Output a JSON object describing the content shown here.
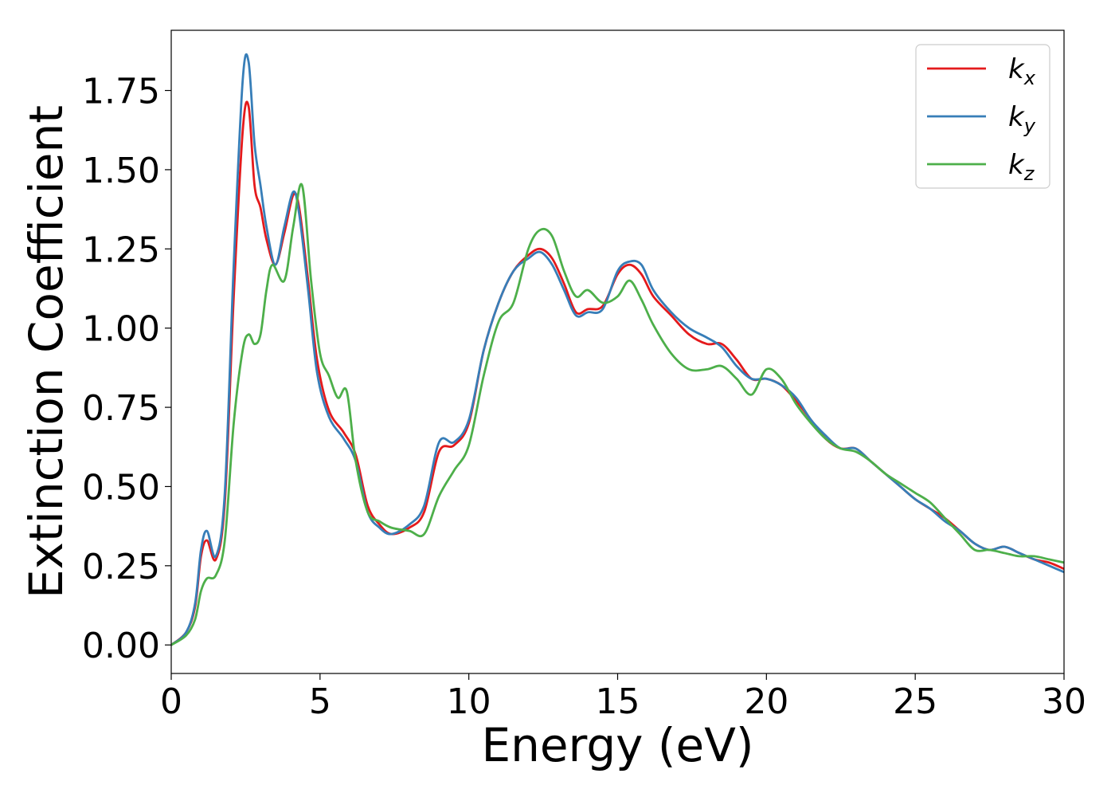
{
  "chart_data": {
    "type": "line",
    "title": "",
    "xlabel": "Energy (eV)",
    "ylabel": "Extinction Coefficient",
    "xlim": [
      0,
      30
    ],
    "ylim": [
      -0.09,
      1.94
    ],
    "xticks": [
      0,
      5,
      10,
      15,
      20,
      25,
      30
    ],
    "xtick_labels": [
      "0",
      "5",
      "10",
      "15",
      "20",
      "25",
      "30"
    ],
    "yticks": [
      0,
      0.25,
      0.5,
      0.75,
      1.0,
      1.25,
      1.5,
      1.75
    ],
    "ytick_labels": [
      "0.00",
      "0.25",
      "0.50",
      "0.75",
      "1.00",
      "1.25",
      "1.50",
      "1.75"
    ],
    "grid": false,
    "legend_position": "top-right",
    "series": [
      {
        "name": "k_x",
        "label_main": "k",
        "label_sub": "x",
        "color": "#e41a1c",
        "x": [
          0,
          0.5,
          0.8,
          1.0,
          1.2,
          1.5,
          1.8,
          2.1,
          2.4,
          2.6,
          2.8,
          3.0,
          3.2,
          3.5,
          3.8,
          4.1,
          4.3,
          4.6,
          4.9,
          5.3,
          5.8,
          6.2,
          6.6,
          7.0,
          7.4,
          8.0,
          8.5,
          9.0,
          9.5,
          10.0,
          10.5,
          11.0,
          11.5,
          12.0,
          12.4,
          12.8,
          13.2,
          13.6,
          14.0,
          14.5,
          15.0,
          15.4,
          15.8,
          16.2,
          16.8,
          17.4,
          18.0,
          18.5,
          19.0,
          19.5,
          20.0,
          20.5,
          21.0,
          21.5,
          22.0,
          22.5,
          23.0,
          23.5,
          24.0,
          24.5,
          25.0,
          25.5,
          26.0,
          26.5,
          27.0,
          27.5,
          28.0,
          28.5,
          29.0,
          29.5,
          30.0
        ],
        "y": [
          0.0,
          0.04,
          0.12,
          0.28,
          0.33,
          0.27,
          0.45,
          1.1,
          1.62,
          1.7,
          1.45,
          1.38,
          1.28,
          1.2,
          1.3,
          1.42,
          1.38,
          1.15,
          0.9,
          0.74,
          0.67,
          0.6,
          0.44,
          0.38,
          0.35,
          0.37,
          0.42,
          0.61,
          0.63,
          0.7,
          0.93,
          1.08,
          1.18,
          1.23,
          1.25,
          1.22,
          1.14,
          1.05,
          1.06,
          1.07,
          1.17,
          1.2,
          1.17,
          1.1,
          1.04,
          0.98,
          0.95,
          0.95,
          0.9,
          0.84,
          0.84,
          0.82,
          0.77,
          0.71,
          0.65,
          0.62,
          0.62,
          0.58,
          0.54,
          0.5,
          0.46,
          0.43,
          0.4,
          0.36,
          0.32,
          0.3,
          0.31,
          0.29,
          0.27,
          0.26,
          0.24
        ]
      },
      {
        "name": "k_y",
        "label_main": "k",
        "label_sub": "y",
        "color": "#377eb8",
        "x": [
          0,
          0.5,
          0.8,
          1.0,
          1.2,
          1.5,
          1.8,
          2.1,
          2.4,
          2.6,
          2.8,
          3.0,
          3.2,
          3.5,
          3.8,
          4.1,
          4.3,
          4.6,
          4.9,
          5.3,
          5.8,
          6.2,
          6.6,
          7.0,
          7.4,
          8.0,
          8.5,
          9.0,
          9.5,
          10.0,
          10.5,
          11.0,
          11.5,
          12.0,
          12.4,
          12.8,
          13.2,
          13.6,
          14.0,
          14.5,
          15.0,
          15.4,
          15.8,
          16.2,
          16.8,
          17.4,
          18.0,
          18.5,
          19.0,
          19.5,
          20.0,
          20.5,
          21.0,
          21.5,
          22.0,
          22.5,
          23.0,
          23.5,
          24.0,
          24.5,
          25.0,
          25.5,
          26.0,
          26.5,
          27.0,
          27.5,
          28.0,
          28.5,
          29.0,
          29.5,
          30.0
        ],
        "y": [
          0.0,
          0.04,
          0.13,
          0.3,
          0.36,
          0.28,
          0.48,
          1.2,
          1.78,
          1.84,
          1.58,
          1.45,
          1.32,
          1.2,
          1.32,
          1.43,
          1.36,
          1.12,
          0.86,
          0.72,
          0.65,
          0.58,
          0.42,
          0.37,
          0.35,
          0.38,
          0.44,
          0.64,
          0.64,
          0.71,
          0.93,
          1.08,
          1.18,
          1.22,
          1.24,
          1.2,
          1.12,
          1.04,
          1.05,
          1.06,
          1.18,
          1.21,
          1.2,
          1.12,
          1.05,
          1.0,
          0.97,
          0.94,
          0.88,
          0.84,
          0.84,
          0.82,
          0.78,
          0.71,
          0.66,
          0.62,
          0.62,
          0.58,
          0.54,
          0.5,
          0.46,
          0.43,
          0.39,
          0.36,
          0.32,
          0.3,
          0.31,
          0.29,
          0.27,
          0.25,
          0.23
        ]
      },
      {
        "name": "k_z",
        "label_main": "k",
        "label_sub": "z",
        "color": "#4daf4a",
        "x": [
          0,
          0.5,
          0.8,
          1.0,
          1.2,
          1.5,
          1.8,
          2.1,
          2.4,
          2.6,
          2.8,
          3.0,
          3.2,
          3.4,
          3.8,
          4.1,
          4.4,
          4.7,
          5.0,
          5.3,
          5.6,
          5.9,
          6.2,
          6.6,
          7.0,
          7.4,
          8.0,
          8.5,
          9.0,
          9.5,
          10.0,
          10.5,
          11.0,
          11.5,
          12.0,
          12.4,
          12.8,
          13.2,
          13.6,
          14.0,
          14.5,
          15.0,
          15.4,
          15.8,
          16.2,
          16.8,
          17.4,
          18.0,
          18.5,
          19.0,
          19.5,
          20.0,
          20.5,
          21.0,
          21.5,
          22.0,
          22.5,
          23.0,
          23.5,
          24.0,
          24.5,
          25.0,
          25.5,
          26.0,
          26.5,
          27.0,
          27.5,
          28.0,
          28.5,
          29.0,
          29.5,
          30.0
        ],
        "y": [
          0.0,
          0.03,
          0.08,
          0.17,
          0.21,
          0.22,
          0.33,
          0.7,
          0.93,
          0.98,
          0.95,
          0.98,
          1.12,
          1.2,
          1.15,
          1.32,
          1.45,
          1.15,
          0.92,
          0.85,
          0.78,
          0.8,
          0.58,
          0.42,
          0.39,
          0.37,
          0.36,
          0.35,
          0.47,
          0.55,
          0.63,
          0.85,
          1.02,
          1.08,
          1.25,
          1.31,
          1.29,
          1.18,
          1.1,
          1.12,
          1.08,
          1.1,
          1.15,
          1.09,
          1.01,
          0.92,
          0.87,
          0.87,
          0.88,
          0.84,
          0.79,
          0.87,
          0.84,
          0.76,
          0.7,
          0.65,
          0.62,
          0.61,
          0.58,
          0.54,
          0.51,
          0.48,
          0.45,
          0.4,
          0.35,
          0.3,
          0.3,
          0.29,
          0.28,
          0.28,
          0.27,
          0.26
        ]
      }
    ]
  }
}
